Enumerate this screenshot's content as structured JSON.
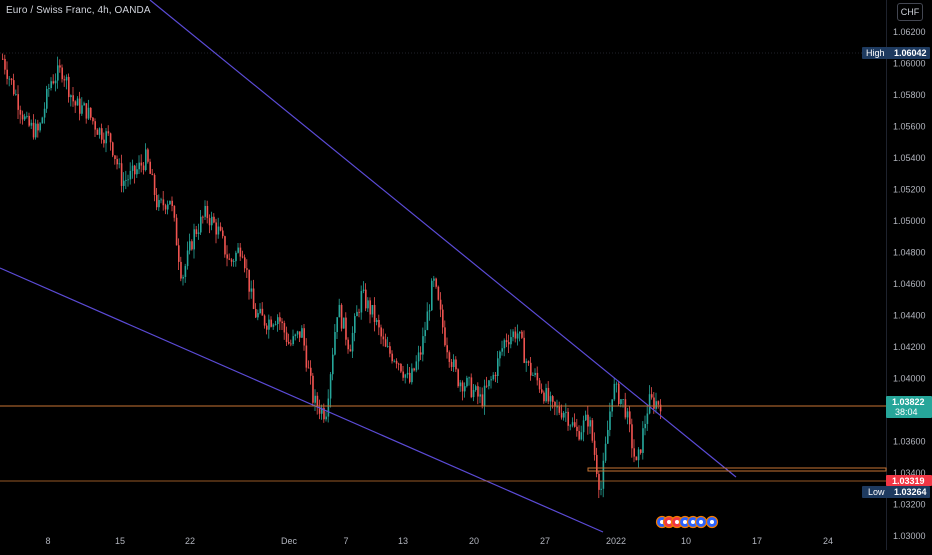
{
  "header": {
    "symbol_title": "Euro / Swiss Franc, 4h, OANDA",
    "currency_button": "CHF"
  },
  "colors": {
    "background": "#000000",
    "up_candle": "#26a69a",
    "down_candle": "#ef5350",
    "trendline": "#5b4bd6",
    "horizontal_line": "#c87533",
    "price_badge": "#26a69a",
    "alert_badge": "#f23645",
    "high_low_badge": "#1e3a5f"
  },
  "chart_data": {
    "type": "candlestick",
    "symbol": "EURCHF",
    "interval": "4h",
    "y_axis": {
      "ticks": [
        "1.06200",
        "1.06000",
        "1.05800",
        "1.05600",
        "1.05400",
        "1.05200",
        "1.05000",
        "1.04800",
        "1.04600",
        "1.04400",
        "1.04200",
        "1.04000",
        "1.03800",
        "1.03600",
        "1.03400",
        "1.03200",
        "1.03000"
      ],
      "tick_values": [
        1.062,
        1.06,
        1.058,
        1.056,
        1.054,
        1.052,
        1.05,
        1.048,
        1.046,
        1.044,
        1.042,
        1.04,
        1.038,
        1.036,
        1.034,
        1.032,
        1.03
      ],
      "range": [
        1.0296,
        1.0632
      ]
    },
    "x_axis": {
      "ticks": [
        "8",
        "15",
        "22",
        "Dec",
        "7",
        "13",
        "20",
        "27",
        "2022",
        "10",
        "17",
        "24"
      ]
    },
    "badges": {
      "high_label": "High",
      "high_value": "1.06042",
      "last_price": "1.03822",
      "countdown": "38:04",
      "alert_price": "1.03319",
      "low_label": "Low",
      "low_value": "1.03264"
    },
    "price_path": [
      1.0603,
      1.0582,
      1.0561,
      1.0556,
      1.0589,
      1.0596,
      1.0574,
      1.057,
      1.0558,
      1.0552,
      1.0525,
      1.053,
      1.054,
      1.0508,
      1.0515,
      1.0464,
      1.0492,
      1.0505,
      1.0494,
      1.0473,
      1.0485,
      1.0442,
      1.0436,
      1.044,
      1.0421,
      1.043,
      1.0385,
      1.0378,
      1.0446,
      1.042,
      1.0453,
      1.044,
      1.0418,
      1.0413,
      1.0397,
      1.0418,
      1.0462,
      1.0425,
      1.04,
      1.0395,
      1.0386,
      1.0401,
      1.0425,
      1.043,
      1.0406,
      1.0395,
      1.038,
      1.038,
      1.0365,
      1.0375,
      1.0328,
      1.0395,
      1.0383,
      1.0343,
      1.0385,
      1.0385
    ]
  }
}
